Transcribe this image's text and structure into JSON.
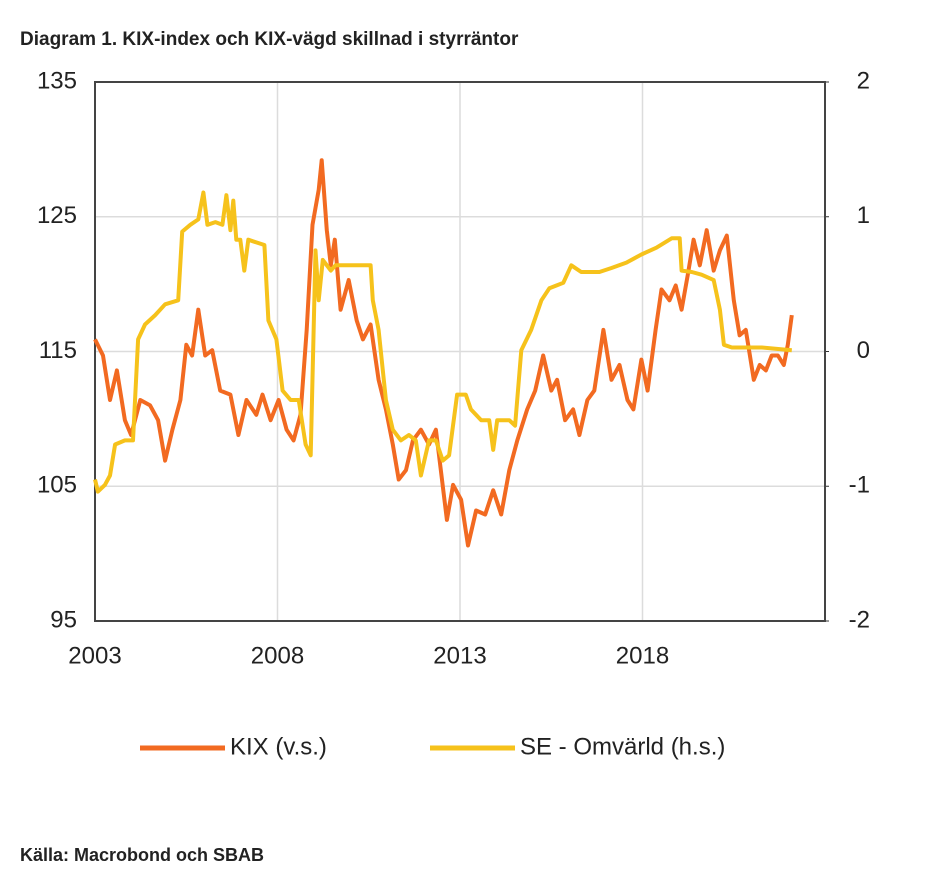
{
  "chart_data": {
    "type": "line",
    "title": "Diagram 1. KIX-index och KIX-vägd skillnad i styrräntor",
    "source": "Källa: Macrobond och SBAB",
    "xlim": [
      2003,
      2023
    ],
    "xticks": [
      2003,
      2008,
      2013,
      2018
    ],
    "ylim": [
      95,
      135
    ],
    "yticks": [
      95,
      105,
      115,
      125,
      135
    ],
    "y2lim": [
      -2,
      2
    ],
    "y2ticks": [
      -2,
      -1,
      0,
      1,
      2
    ],
    "grid": true,
    "legend": "bottom",
    "series": [
      {
        "name": "KIX (v.s.)",
        "color": "#f26a21",
        "axis": "y",
        "x": [
          2003.0,
          2003.22,
          2003.41,
          2003.6,
          2003.82,
          2003.99,
          2004.24,
          2004.51,
          2004.73,
          2004.92,
          2005.12,
          2005.34,
          2005.5,
          2005.66,
          2005.83,
          2006.02,
          2006.21,
          2006.43,
          2006.71,
          2006.93,
          2007.15,
          2007.42,
          2007.59,
          2007.81,
          2008.03,
          2008.25,
          2008.44,
          2008.63,
          2008.8,
          2008.96,
          2009.13,
          2009.21,
          2009.35,
          2009.46,
          2009.57,
          2009.73,
          2009.95,
          2010.17,
          2010.34,
          2010.55,
          2010.77,
          2010.97,
          2011.16,
          2011.32,
          2011.52,
          2011.71,
          2011.93,
          2012.15,
          2012.34,
          2012.64,
          2012.81,
          2013.03,
          2013.22,
          2013.44,
          2013.69,
          2013.91,
          2014.13,
          2014.35,
          2014.57,
          2014.84,
          2015.06,
          2015.28,
          2015.5,
          2015.66,
          2015.88,
          2016.1,
          2016.27,
          2016.49,
          2016.68,
          2016.93,
          2017.15,
          2017.37,
          2017.59,
          2017.75,
          2017.97,
          2018.14,
          2018.36,
          2018.52,
          2018.74,
          2018.91,
          2019.07,
          2019.24,
          2019.4,
          2019.57,
          2019.76,
          2019.95,
          2020.12,
          2020.31,
          2020.5,
          2020.66,
          2020.83,
          2021.05,
          2021.21,
          2021.38,
          2021.54,
          2021.71,
          2021.87,
          2021.98,
          2022.09
        ],
        "values": [
          115.9,
          114.7,
          111.4,
          113.6,
          109.9,
          108.8,
          111.4,
          111.0,
          109.9,
          106.9,
          109.2,
          111.4,
          115.5,
          114.7,
          118.1,
          114.7,
          115.1,
          112.1,
          111.8,
          108.8,
          111.4,
          110.3,
          111.8,
          109.9,
          111.4,
          109.2,
          108.4,
          110.3,
          116.6,
          124.4,
          127.0,
          129.2,
          124.0,
          121.4,
          123.3,
          118.1,
          120.3,
          117.3,
          115.9,
          117.0,
          112.9,
          110.7,
          108.1,
          105.5,
          106.2,
          108.4,
          109.2,
          108.1,
          109.2,
          102.5,
          105.1,
          104.0,
          100.6,
          103.2,
          102.9,
          104.7,
          102.9,
          106.2,
          108.4,
          110.7,
          112.1,
          114.7,
          112.1,
          112.9,
          109.9,
          110.7,
          108.8,
          111.4,
          112.1,
          116.6,
          112.9,
          114.0,
          111.4,
          110.7,
          114.4,
          112.1,
          116.6,
          119.6,
          118.8,
          119.9,
          118.1,
          120.7,
          123.3,
          121.4,
          124.0,
          121.0,
          122.5,
          123.6,
          118.8,
          116.2,
          116.6,
          112.9,
          114.0,
          113.6,
          114.7,
          114.7,
          114.0,
          115.5,
          117.7
        ]
      },
      {
        "name": "SE - Omvärld (h.s.)",
        "color": "#f6c21b",
        "axis": "y2",
        "x": [
          2003.0,
          2003.08,
          2003.27,
          2003.41,
          2003.55,
          2003.82,
          2004.04,
          2004.18,
          2004.37,
          2004.65,
          2004.92,
          2005.28,
          2005.39,
          2005.61,
          2005.83,
          2005.97,
          2006.08,
          2006.3,
          2006.49,
          2006.6,
          2006.71,
          2006.79,
          2006.87,
          2006.98,
          2007.09,
          2007.2,
          2007.42,
          2007.64,
          2007.75,
          2007.97,
          2008.14,
          2008.36,
          2008.58,
          2008.77,
          2008.91,
          2009.04,
          2009.13,
          2009.24,
          2009.46,
          2009.59,
          2010.55,
          2010.61,
          2010.77,
          2010.97,
          2011.16,
          2011.38,
          2011.6,
          2011.79,
          2011.93,
          2012.15,
          2012.34,
          2012.53,
          2012.7,
          2012.92,
          2013.16,
          2013.3,
          2013.58,
          2013.8,
          2013.91,
          2014.02,
          2014.35,
          2014.51,
          2014.68,
          2014.95,
          2015.23,
          2015.45,
          2015.64,
          2015.83,
          2016.05,
          2016.32,
          2016.82,
          2017.15,
          2017.56,
          2017.97,
          2018.38,
          2018.8,
          2019.02,
          2019.07,
          2019.35,
          2019.62,
          2019.95,
          2020.12,
          2020.23,
          2020.45,
          2021.27,
          2022.09
        ],
        "values": [
          -0.95,
          -1.04,
          -0.99,
          -0.92,
          -0.69,
          -0.66,
          -0.66,
          0.09,
          0.2,
          0.27,
          0.35,
          0.38,
          0.89,
          0.94,
          0.98,
          1.18,
          0.94,
          0.96,
          0.94,
          1.16,
          0.9,
          1.12,
          0.83,
          0.83,
          0.6,
          0.83,
          0.81,
          0.79,
          0.23,
          0.09,
          -0.29,
          -0.36,
          -0.36,
          -0.69,
          -0.77,
          0.75,
          0.38,
          0.68,
          0.6,
          0.64,
          0.64,
          0.38,
          0.16,
          -0.36,
          -0.58,
          -0.66,
          -0.62,
          -0.66,
          -0.92,
          -0.66,
          -0.66,
          -0.81,
          -0.77,
          -0.32,
          -0.32,
          -0.43,
          -0.51,
          -0.51,
          -0.73,
          -0.51,
          -0.51,
          -0.55,
          0.01,
          0.16,
          0.38,
          0.47,
          0.49,
          0.51,
          0.64,
          0.59,
          0.59,
          0.62,
          0.66,
          0.72,
          0.77,
          0.84,
          0.84,
          0.6,
          0.59,
          0.57,
          0.53,
          0.31,
          0.05,
          0.03,
          0.03,
          0.01
        ]
      }
    ]
  }
}
